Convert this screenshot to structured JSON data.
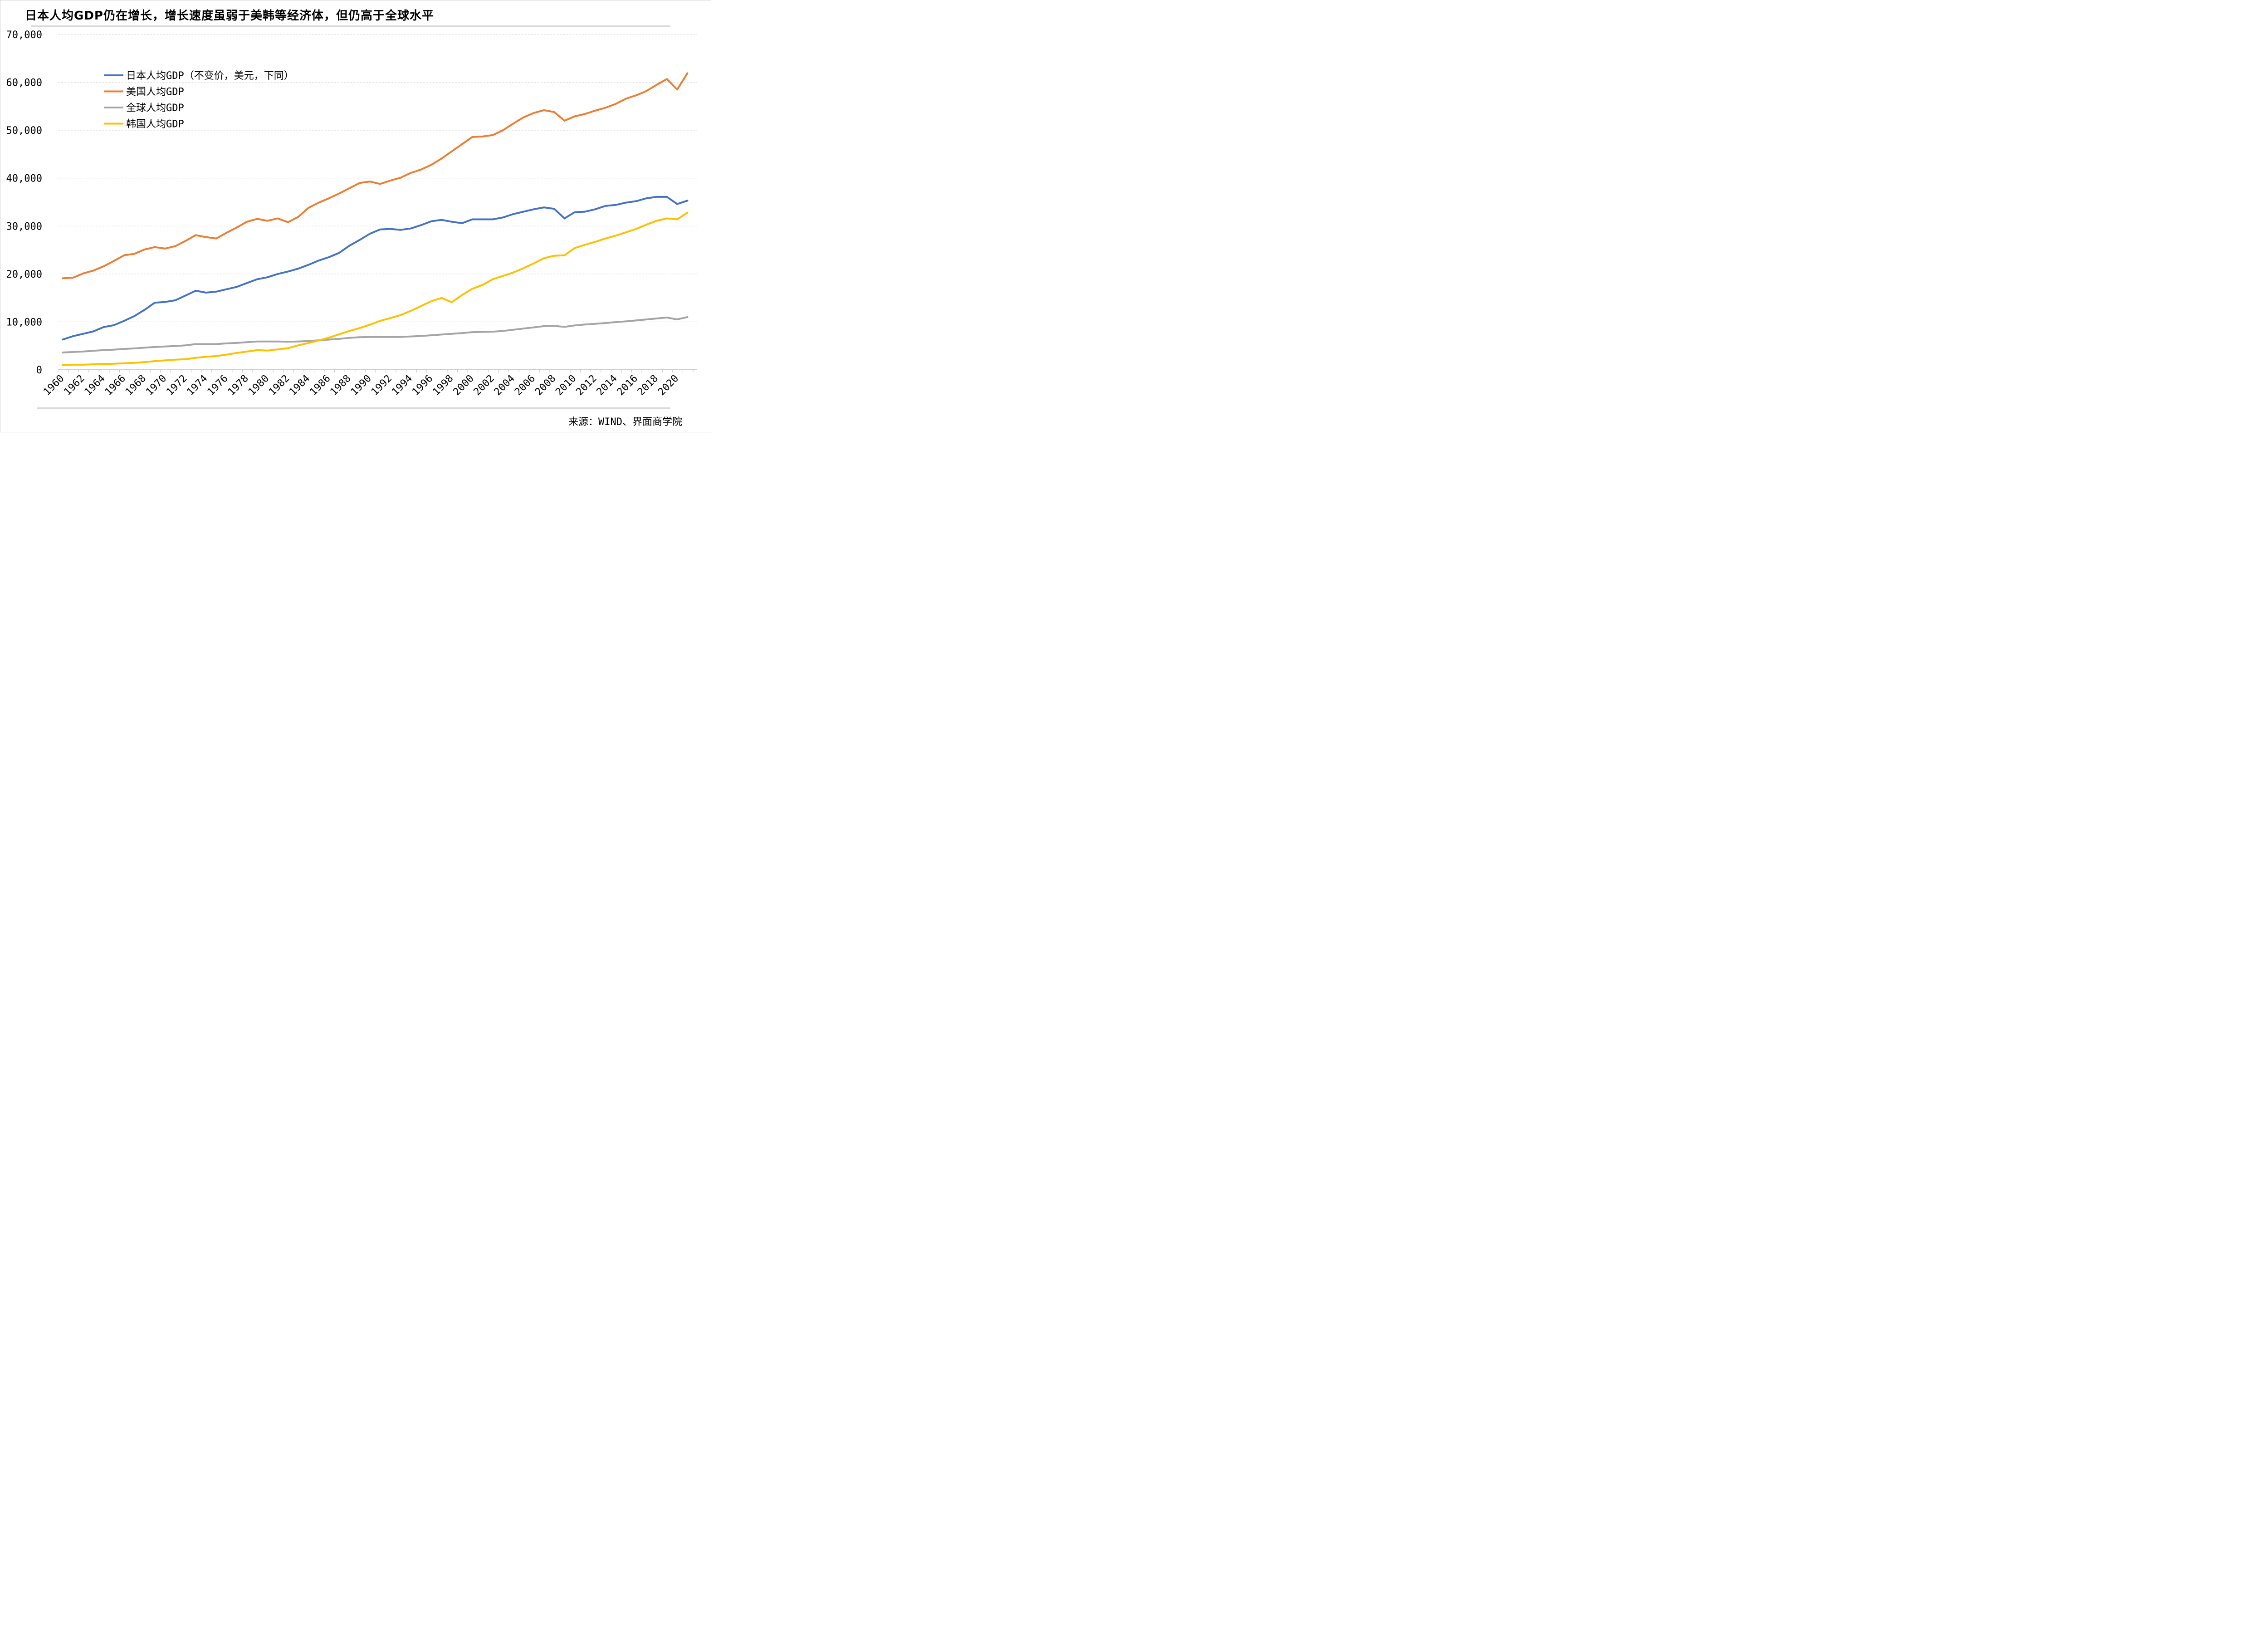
{
  "chart_data": {
    "type": "line",
    "title": "日本人均GDP仍在增长，增长速度虽弱于美韩等经济体，但仍高于全球水平",
    "source": "来源：WIND、界面商学院",
    "xlabel": "",
    "ylabel": "",
    "ylim": [
      0,
      70000
    ],
    "grid": true,
    "legend_position": "top-left",
    "y_tick_labels": [
      "0",
      "10,000",
      "20,000",
      "30,000",
      "40,000",
      "50,000",
      "60,000",
      "70,000"
    ],
    "x_tick_labels": [
      "1960",
      "1962",
      "1964",
      "1966",
      "1968",
      "1970",
      "1972",
      "1974",
      "1976",
      "1978",
      "1980",
      "1982",
      "1984",
      "1986",
      "1988",
      "1990",
      "1992",
      "1994",
      "1996",
      "1998",
      "2000",
      "2002",
      "2004",
      "2006",
      "2008",
      "2010",
      "2012",
      "2014",
      "2016",
      "2018",
      "2020"
    ],
    "x": [
      1960,
      1961,
      1962,
      1963,
      1964,
      1965,
      1966,
      1967,
      1968,
      1969,
      1970,
      1971,
      1972,
      1973,
      1974,
      1975,
      1976,
      1977,
      1978,
      1979,
      1980,
      1981,
      1982,
      1983,
      1984,
      1985,
      1986,
      1987,
      1988,
      1989,
      1990,
      1991,
      1992,
      1993,
      1994,
      1995,
      1996,
      1997,
      1998,
      1999,
      2000,
      2001,
      2002,
      2003,
      2004,
      2005,
      2006,
      2007,
      2008,
      2009,
      2010,
      2011,
      2012,
      2013,
      2014,
      2015,
      2016,
      2017,
      2018,
      2019,
      2020,
      2021
    ],
    "series": [
      {
        "name": "日本人均GDP（不变价，美元，下同）",
        "color": "#4472C4",
        "values": [
          6300,
          7000,
          7500,
          8000,
          8900,
          9300,
          10200,
          11200,
          12500,
          14000,
          14150,
          14500,
          15500,
          16500,
          16100,
          16300,
          16800,
          17300,
          18100,
          18900,
          19300,
          20000,
          20500,
          21100,
          21900,
          22800,
          23500,
          24400,
          25900,
          27100,
          28400,
          29300,
          29400,
          29200,
          29500,
          30200,
          31000,
          31300,
          30900,
          30600,
          31400,
          31400,
          31400,
          31800,
          32500,
          33000,
          33500,
          33900,
          33600,
          31600,
          32900,
          33000,
          33500,
          34200,
          34400,
          34900,
          35200,
          35800,
          36100,
          36100,
          34600,
          35300
        ]
      },
      {
        "name": "美国人均GDP",
        "color": "#ED7D31",
        "values": [
          19100,
          19200,
          20100,
          20700,
          21600,
          22700,
          23900,
          24200,
          25100,
          25600,
          25300,
          25800,
          26900,
          28100,
          27700,
          27400,
          28600,
          29700,
          30900,
          31500,
          31100,
          31600,
          30800,
          31900,
          33800,
          34900,
          35800,
          36800,
          37900,
          39000,
          39300,
          38800,
          39500,
          40100,
          41100,
          41800,
          42800,
          44100,
          45600,
          47100,
          48600,
          48700,
          49000,
          50000,
          51400,
          52700,
          53600,
          54200,
          53800,
          52000,
          52900,
          53400,
          54100,
          54700,
          55500,
          56600,
          57300,
          58200,
          59500,
          60700,
          58500,
          61900
        ]
      },
      {
        "name": "全球人均GDP",
        "color": "#A5A5A5",
        "values": [
          3600,
          3700,
          3800,
          3950,
          4100,
          4200,
          4350,
          4450,
          4600,
          4750,
          4850,
          4950,
          5100,
          5350,
          5350,
          5350,
          5500,
          5600,
          5750,
          5900,
          5900,
          5900,
          5850,
          5900,
          6000,
          6150,
          6300,
          6450,
          6650,
          6800,
          6850,
          6850,
          6850,
          6850,
          6950,
          7050,
          7200,
          7350,
          7500,
          7650,
          7850,
          7900,
          7950,
          8100,
          8350,
          8600,
          8850,
          9100,
          9150,
          8950,
          9250,
          9450,
          9600,
          9750,
          9950,
          10100,
          10300,
          10500,
          10700,
          10900,
          10500,
          11000
        ]
      },
      {
        "name": "韩国人均GDP",
        "color": "#FFC000",
        "values": [
          1000,
          1050,
          1050,
          1150,
          1200,
          1250,
          1350,
          1450,
          1600,
          1800,
          1950,
          2100,
          2200,
          2500,
          2700,
          2850,
          3150,
          3500,
          3800,
          4100,
          4000,
          4250,
          4500,
          5100,
          5600,
          6100,
          6700,
          7400,
          8100,
          8700,
          9400,
          10200,
          10800,
          11400,
          12300,
          13300,
          14300,
          15000,
          14100,
          15600,
          16900,
          17700,
          18900,
          19600,
          20300,
          21200,
          22200,
          23300,
          23800,
          23900,
          25400,
          26100,
          26700,
          27400,
          28000,
          28700,
          29400,
          30300,
          31100,
          31600,
          31400,
          32800
        ]
      }
    ]
  }
}
